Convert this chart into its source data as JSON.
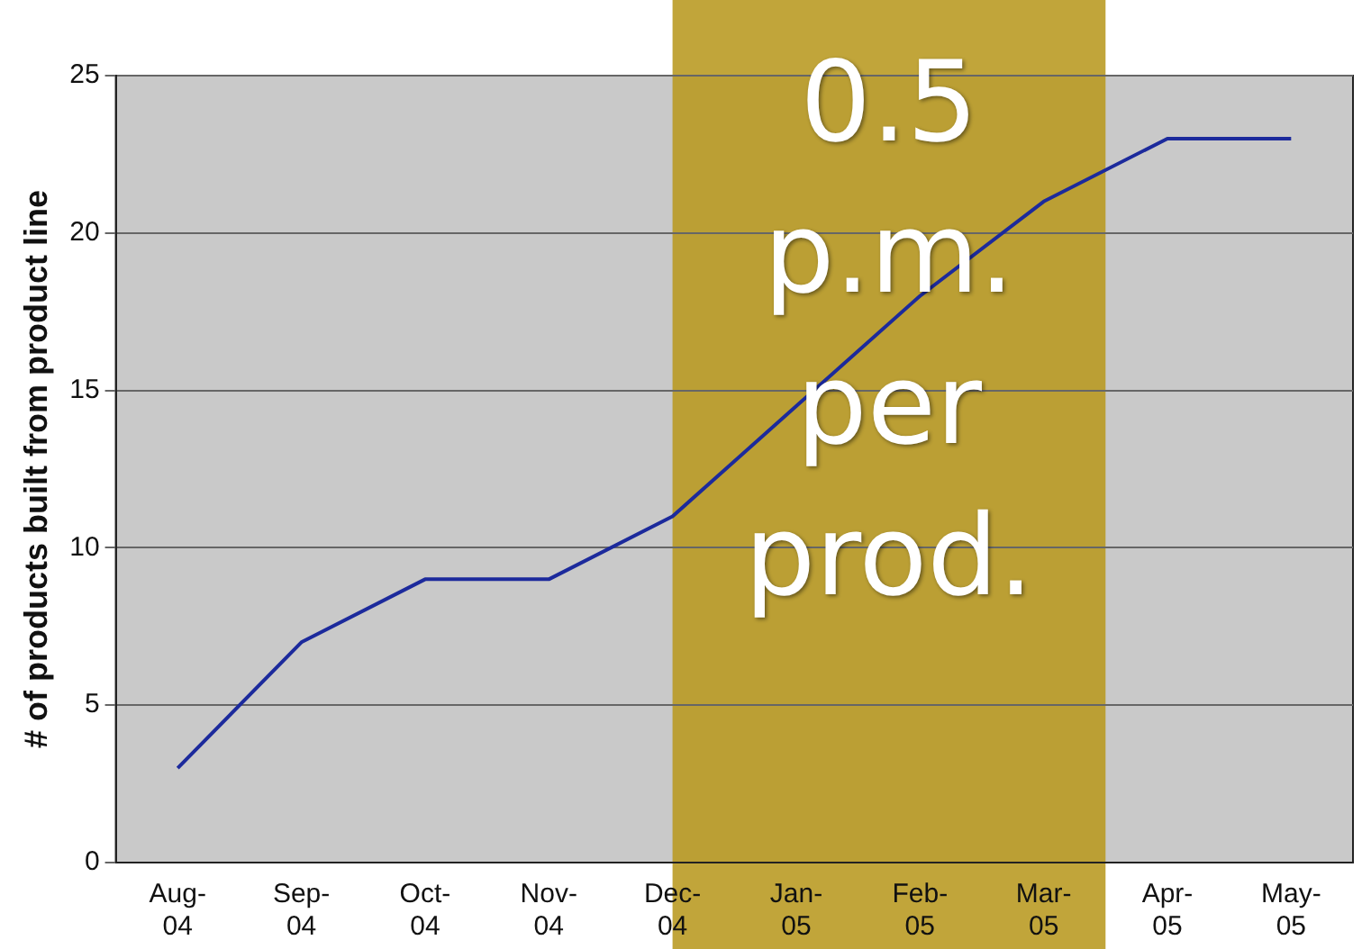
{
  "chart_data": {
    "type": "line",
    "ylabel": "# of products built from product line",
    "categories": [
      "Aug-04",
      "Sep-04",
      "Oct-04",
      "Nov-04",
      "Dec-04",
      "Jan-05",
      "Feb-05",
      "Mar-05",
      "Apr-05",
      "May-05"
    ],
    "series": [
      {
        "color": "#1c2a9c",
        "values": [
          3,
          7,
          9,
          9,
          11,
          14.5,
          18,
          21,
          23,
          23
        ]
      }
    ],
    "ylim": [
      0,
      25
    ],
    "yticks": [
      0,
      5,
      10,
      15,
      20,
      25
    ],
    "grid": "y",
    "legend": false,
    "marker": "none",
    "line_style": "solid",
    "bands": [
      {
        "axis": "x",
        "from": "Dec-04",
        "to": "Mar-05",
        "label": "0.5 p.m. per prod.",
        "color": "#b8981f"
      }
    ]
  }
}
